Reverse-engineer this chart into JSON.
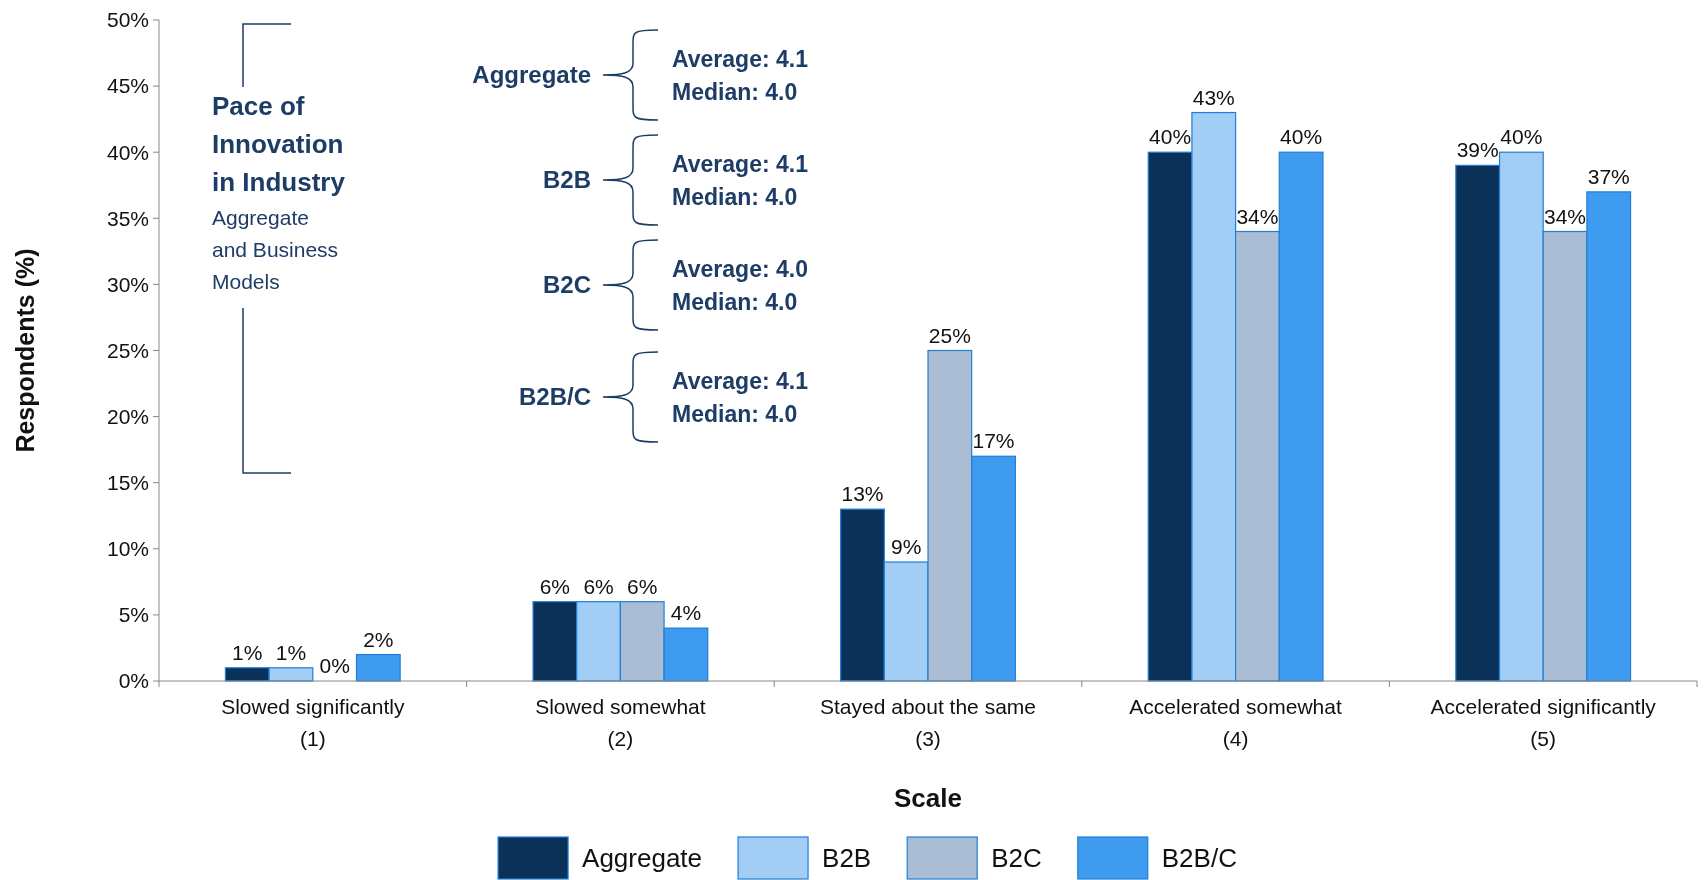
{
  "chart_data": {
    "type": "bar",
    "title": "Pace of Innovation in Industry",
    "subtitle": "Aggregate and Business Models",
    "xlabel": "Scale",
    "ylabel": "Respondents (%)",
    "categories": [
      "Slowed significantly\n(1)",
      "Slowed somewhat\n(2)",
      "Stayed about the same\n(3)",
      "Accelerated somewhat\n(4)",
      "Accelerated significantly\n(5)"
    ],
    "series": [
      {
        "name": "Aggregate",
        "color": "#0b3158",
        "values": [
          1,
          6,
          13,
          40,
          39
        ]
      },
      {
        "name": "B2B",
        "color": "#a2cef6",
        "values": [
          1,
          6,
          9,
          43,
          40
        ]
      },
      {
        "name": "B2C",
        "color": "#aabdd5",
        "values": [
          0,
          6,
          25,
          34,
          34
        ]
      },
      {
        "name": "B2B/C",
        "color": "#3e9bf0",
        "values": [
          2,
          4,
          17,
          40,
          37
        ]
      }
    ],
    "ylim": [
      0,
      50
    ],
    "yticks": [
      {
        "value": 0,
        "label": "0%"
      },
      {
        "value": 5,
        "label": "5%"
      },
      {
        "value": 10,
        "label": "10%"
      },
      {
        "value": 15,
        "label": "15%"
      },
      {
        "value": 20,
        "label": "20%"
      },
      {
        "value": 25,
        "label": "25%"
      },
      {
        "value": 30,
        "label": "30%"
      },
      {
        "value": 35,
        "label": "35%"
      },
      {
        "value": 40,
        "label": "40%"
      },
      {
        "value": 45,
        "label": "45%"
      },
      {
        "value": 50,
        "label": "50%"
      }
    ],
    "value_labels": [
      [
        "1%",
        "6%",
        "13%",
        "40%",
        "39%"
      ],
      [
        "1%",
        "6%",
        "9%",
        "43%",
        "40%"
      ],
      [
        "0%",
        "6%",
        "25%",
        "34%",
        "34%"
      ],
      [
        "2%",
        "4%",
        "17%",
        "40%",
        "37%"
      ]
    ],
    "annotations": [
      "Aggregate",
      "Average: 4.1",
      "Median: 4.0",
      "B2B",
      "Average: 4.1",
      "Median: 4.0",
      "B2C",
      "Average: 4.0",
      "Median: 4.0",
      "B2B/C",
      "Average: 4.1",
      "Median: 4.0"
    ],
    "legend": "bottom",
    "grid": false
  }
}
